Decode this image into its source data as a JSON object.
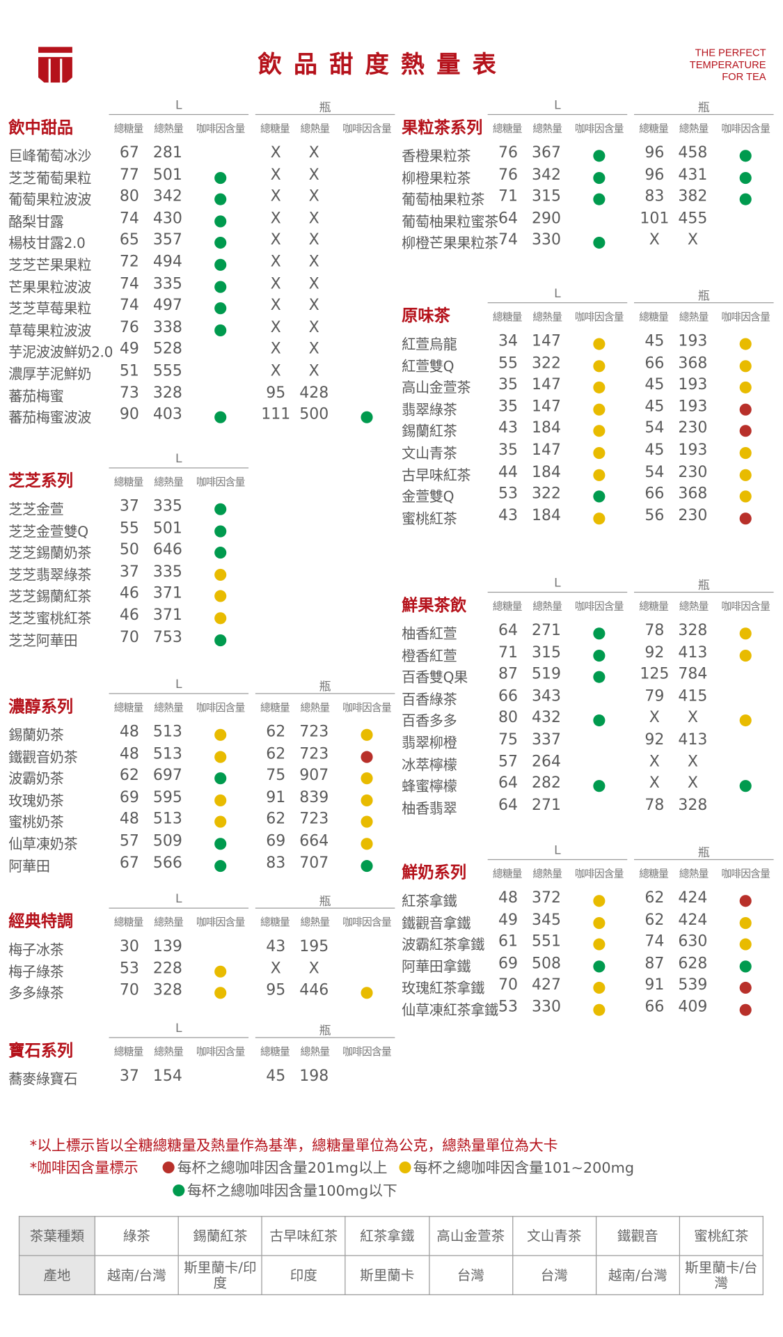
{
  "header": {
    "title": "飲品甜度熱量表",
    "tagline": [
      "THE PERFECT",
      "TEMPERATURE",
      "FOR TEA"
    ],
    "brand_color": "#b5121b"
  },
  "column_headers": {
    "size_l": "L",
    "size_bottle": "瓶",
    "sugar": "總糖量",
    "calories": "總熱量",
    "caffeine": "咖啡因含量"
  },
  "caffeine_colors": {
    "red": "#b8302a",
    "yellow": "#e8bb00",
    "green": "#009a4e"
  },
  "sections": [
    {
      "title": "飲中甜品",
      "bottle": true,
      "rows": [
        [
          "巨峰葡萄冰沙",
          "67",
          "281",
          "",
          "X",
          "X",
          ""
        ],
        [
          "芝芝葡萄果粒",
          "77",
          "501",
          "green",
          "X",
          "X",
          ""
        ],
        [
          "葡萄果粒波波",
          "80",
          "342",
          "green",
          "X",
          "X",
          ""
        ],
        [
          "酪梨甘露",
          "74",
          "430",
          "green",
          "X",
          "X",
          ""
        ],
        [
          "楊枝甘露2.0",
          "65",
          "357",
          "green",
          "X",
          "X",
          ""
        ],
        [
          "芝芝芒果果粒",
          "72",
          "494",
          "green",
          "X",
          "X",
          ""
        ],
        [
          "芒果果粒波波",
          "74",
          "335",
          "green",
          "X",
          "X",
          ""
        ],
        [
          "芝芝草莓果粒",
          "74",
          "497",
          "green",
          "X",
          "X",
          ""
        ],
        [
          "草莓果粒波波",
          "76",
          "338",
          "green",
          "X",
          "X",
          ""
        ],
        [
          "芋泥波波鮮奶2.0",
          "49",
          "528",
          "",
          "X",
          "X",
          ""
        ],
        [
          "濃厚芋泥鮮奶",
          "51",
          "555",
          "",
          "X",
          "X",
          ""
        ],
        [
          "蕃茄梅蜜",
          "73",
          "328",
          "",
          "95",
          "428",
          ""
        ],
        [
          "蕃茄梅蜜波波",
          "90",
          "403",
          "green",
          "111",
          "500",
          "green"
        ]
      ]
    },
    {
      "title": "芝芝系列",
      "bottle": false,
      "rows": [
        [
          "芝芝金萱",
          "37",
          "335",
          "green"
        ],
        [
          "芝芝金萱雙Q",
          "55",
          "501",
          "green"
        ],
        [
          "芝芝錫蘭奶茶",
          "50",
          "646",
          "green"
        ],
        [
          "芝芝翡翠綠茶",
          "37",
          "335",
          "yellow"
        ],
        [
          "芝芝錫蘭紅茶",
          "46",
          "371",
          "yellow"
        ],
        [
          "芝芝蜜桃紅茶",
          "46",
          "371",
          "yellow"
        ],
        [
          "芝芝阿華田",
          "70",
          "753",
          "green"
        ]
      ]
    },
    {
      "title": "濃醇系列",
      "bottle": true,
      "rows": [
        [
          "錫蘭奶茶",
          "48",
          "513",
          "yellow",
          "62",
          "723",
          "yellow"
        ],
        [
          "鐵觀音奶茶",
          "48",
          "513",
          "yellow",
          "62",
          "723",
          "red"
        ],
        [
          "波霸奶茶",
          "62",
          "697",
          "green",
          "75",
          "907",
          "yellow"
        ],
        [
          "玫瑰奶茶",
          "69",
          "595",
          "yellow",
          "91",
          "839",
          "yellow"
        ],
        [
          "蜜桃奶茶",
          "48",
          "513",
          "yellow",
          "62",
          "723",
          "yellow"
        ],
        [
          "仙草凍奶茶",
          "57",
          "509",
          "green",
          "69",
          "664",
          "yellow"
        ],
        [
          "阿華田",
          "67",
          "566",
          "green",
          "83",
          "707",
          "green"
        ]
      ]
    },
    {
      "title": "經典特調",
      "bottle": true,
      "rows": [
        [
          "梅子冰茶",
          "30",
          "139",
          "",
          "43",
          "195",
          ""
        ],
        [
          "梅子綠茶",
          "53",
          "228",
          "yellow",
          "X",
          "X",
          ""
        ],
        [
          "多多綠茶",
          "70",
          "328",
          "yellow",
          "95",
          "446",
          "yellow"
        ]
      ]
    },
    {
      "title": "寶石系列",
      "bottle": true,
      "rows": [
        [
          "蕎麥綠寶石",
          "37",
          "154",
          "",
          "45",
          "198",
          ""
        ]
      ]
    },
    {
      "title": "果粒茶系列",
      "bottle": true,
      "rows": [
        [
          "香橙果粒茶",
          "76",
          "367",
          "green",
          "96",
          "458",
          "green"
        ],
        [
          "柳橙果粒茶",
          "76",
          "342",
          "green",
          "96",
          "431",
          "green"
        ],
        [
          "葡萄柚果粒茶",
          "71",
          "315",
          "green",
          "83",
          "382",
          "green"
        ],
        [
          "葡萄柚果粒蜜茶",
          "64",
          "290",
          "",
          "101",
          "455",
          ""
        ],
        [
          "柳橙芒果果粒茶",
          "74",
          "330",
          "green",
          "X",
          "X",
          ""
        ]
      ]
    },
    {
      "title": "原味茶",
      "bottle": true,
      "rows": [
        [
          "紅萱烏龍",
          "34",
          "147",
          "yellow",
          "45",
          "193",
          "yellow"
        ],
        [
          "紅萱雙Q",
          "55",
          "322",
          "yellow",
          "66",
          "368",
          "yellow"
        ],
        [
          "高山金萱茶",
          "35",
          "147",
          "yellow",
          "45",
          "193",
          "yellow"
        ],
        [
          "翡翠綠茶",
          "35",
          "147",
          "yellow",
          "45",
          "193",
          "red"
        ],
        [
          "錫蘭紅茶",
          "43",
          "184",
          "yellow",
          "54",
          "230",
          "red"
        ],
        [
          "文山青茶",
          "35",
          "147",
          "yellow",
          "45",
          "193",
          "yellow"
        ],
        [
          "古早味紅茶",
          "44",
          "184",
          "yellow",
          "54",
          "230",
          "yellow"
        ],
        [
          "金萱雙Q",
          "53",
          "322",
          "green",
          "66",
          "368",
          "yellow"
        ],
        [
          "蜜桃紅茶",
          "43",
          "184",
          "yellow",
          "56",
          "230",
          "red"
        ]
      ]
    },
    {
      "title": "鮮果茶飲",
      "bottle": true,
      "rows": [
        [
          "柚香紅萱",
          "64",
          "271",
          "green",
          "78",
          "328",
          "yellow"
        ],
        [
          "橙香紅萱",
          "71",
          "315",
          "green",
          "92",
          "413",
          "yellow"
        ],
        [
          "百香雙Q果",
          "87",
          "519",
          "green",
          "125",
          "784",
          ""
        ],
        [
          "百香綠茶",
          "66",
          "343",
          "",
          "79",
          "415",
          ""
        ],
        [
          "百香多多",
          "80",
          "432",
          "green",
          "X",
          "X",
          "yellow"
        ],
        [
          "翡翠柳橙",
          "75",
          "337",
          "",
          "92",
          "413",
          ""
        ],
        [
          "冰萃檸檬",
          "57",
          "264",
          "",
          "X",
          "X",
          ""
        ],
        [
          "蜂蜜檸檬",
          "64",
          "282",
          "green",
          "X",
          "X",
          "green"
        ],
        [
          "柚香翡翠",
          "64",
          "271",
          "",
          "78",
          "328",
          ""
        ]
      ]
    },
    {
      "title": "鮮奶系列",
      "bottle": true,
      "rows": [
        [
          "紅茶拿鐵",
          "48",
          "372",
          "yellow",
          "62",
          "424",
          "red"
        ],
        [
          "鐵觀音拿鐵",
          "49",
          "345",
          "yellow",
          "62",
          "424",
          "yellow"
        ],
        [
          "波霸紅茶拿鐵",
          "61",
          "551",
          "yellow",
          "74",
          "630",
          "yellow"
        ],
        [
          "阿華田拿鐵",
          "69",
          "508",
          "green",
          "87",
          "628",
          "green"
        ],
        [
          "玫瑰紅茶拿鐵",
          "70",
          "427",
          "yellow",
          "91",
          "539",
          "red"
        ],
        [
          "仙草凍紅茶拿鐵",
          "53",
          "330",
          "yellow",
          "66",
          "409",
          "red"
        ]
      ]
    }
  ],
  "notes": {
    "basis": "*以上標示皆以全糖總糖量及熱量作為基準，總糖量單位為公克，總熱量單位為大卡",
    "caffeine_label": "*咖啡因含量標示",
    "legend_red": "每杯之總咖啡因含量201mg以上",
    "legend_yellow": "每杯之總咖啡因含量101~200mg",
    "legend_green": "每杯之總咖啡因含量100mg以下"
  },
  "origin_table": {
    "tea_type_label": "茶葉種類",
    "origin_label": "產地",
    "teas": [
      "綠茶",
      "錫蘭紅茶",
      "古早味紅茶",
      "紅茶拿鐵",
      "高山金萱茶",
      "文山青茶",
      "鐵觀音",
      "蜜桃紅茶"
    ],
    "origins": [
      "越南/台灣",
      "斯里蘭卡/印度",
      "印度",
      "斯里蘭卡",
      "台灣",
      "台灣",
      "越南/台灣",
      "斯里蘭卡/台灣"
    ]
  }
}
